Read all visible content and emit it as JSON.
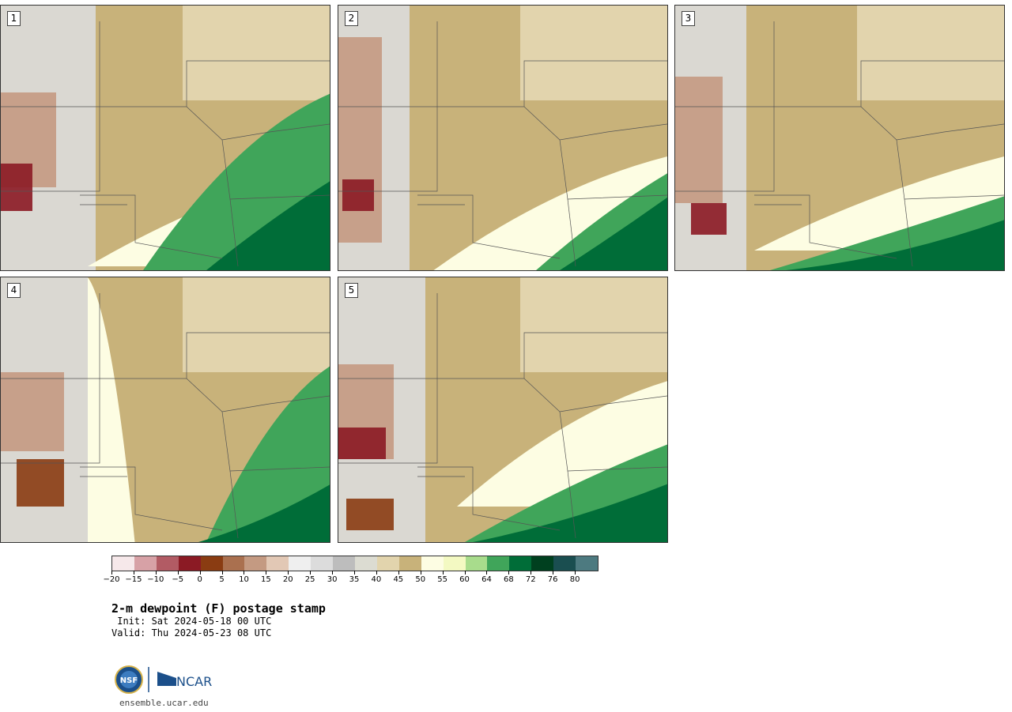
{
  "panels": [
    {
      "label": "1"
    },
    {
      "label": "2"
    },
    {
      "label": "3"
    },
    {
      "label": "4"
    },
    {
      "label": "5"
    }
  ],
  "colorbar": {
    "colors": [
      "#f6e8ea",
      "#d7a1a6",
      "#b25b64",
      "#8b1a24",
      "#8a3c12",
      "#aa704f",
      "#c49a82",
      "#e2c8b5",
      "#efefef",
      "#dcdcdc",
      "#bdbdbd",
      "#dcdcd2",
      "#e2d4ad",
      "#c8b27a",
      "#fdfde3",
      "#f3f9c2",
      "#a8dc8c",
      "#40a55a",
      "#006d38",
      "#00401f",
      "#1a4e50",
      "#4d7a80"
    ],
    "tick_labels": [
      "−20",
      "−15",
      "−10",
      "−5",
      "0",
      "5",
      "10",
      "15",
      "20",
      "25",
      "30",
      "35",
      "40",
      "45",
      "50",
      "55",
      "60",
      "64",
      "68",
      "72",
      "76",
      "80"
    ]
  },
  "title": "2-m dewpoint (F) postage stamp",
  "init_text": " Init: Sat 2024-05-18 00 UTC",
  "valid_text": "Valid: Thu 2024-05-23 08 UTC",
  "logo": {
    "left_text": "NSF",
    "right_text": "NCAR",
    "brand_color": "#1b4f8a"
  },
  "site": "ensemble.ucar.edu"
}
